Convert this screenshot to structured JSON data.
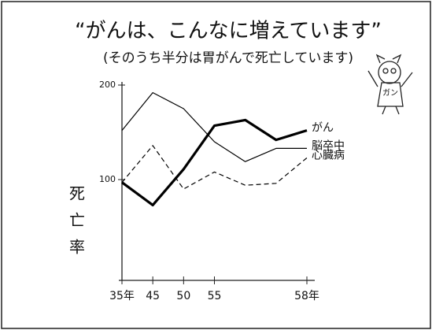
{
  "chart_data": {
    "type": "line",
    "title": "“がんは、こんなに増えています”",
    "subtitle": "(そのうち半分は胃がんで死亡しています)",
    "y_label": "死亡率",
    "annotation": "ガン",
    "categories": [
      "35年",
      "45",
      "50",
      "55",
      null,
      null,
      "58年"
    ],
    "ylim": [
      0,
      200
    ],
    "yticks": [
      100,
      200
    ],
    "series": [
      {
        "name": "がん",
        "color": "#000000",
        "width": 3.2,
        "dashed": false,
        "values": [
          97,
          73,
          111,
          157,
          163,
          142,
          152
        ]
      },
      {
        "name": "脳卒中",
        "color": "#000000",
        "width": 1.2,
        "dashed": false,
        "values": [
          152,
          192,
          175,
          140,
          119,
          133,
          133
        ]
      },
      {
        "name": "心臓病",
        "color": "#000000",
        "width": 1.2,
        "dashed": true,
        "values": [
          97,
          136,
          90,
          108,
          94,
          96,
          123
        ]
      }
    ]
  }
}
